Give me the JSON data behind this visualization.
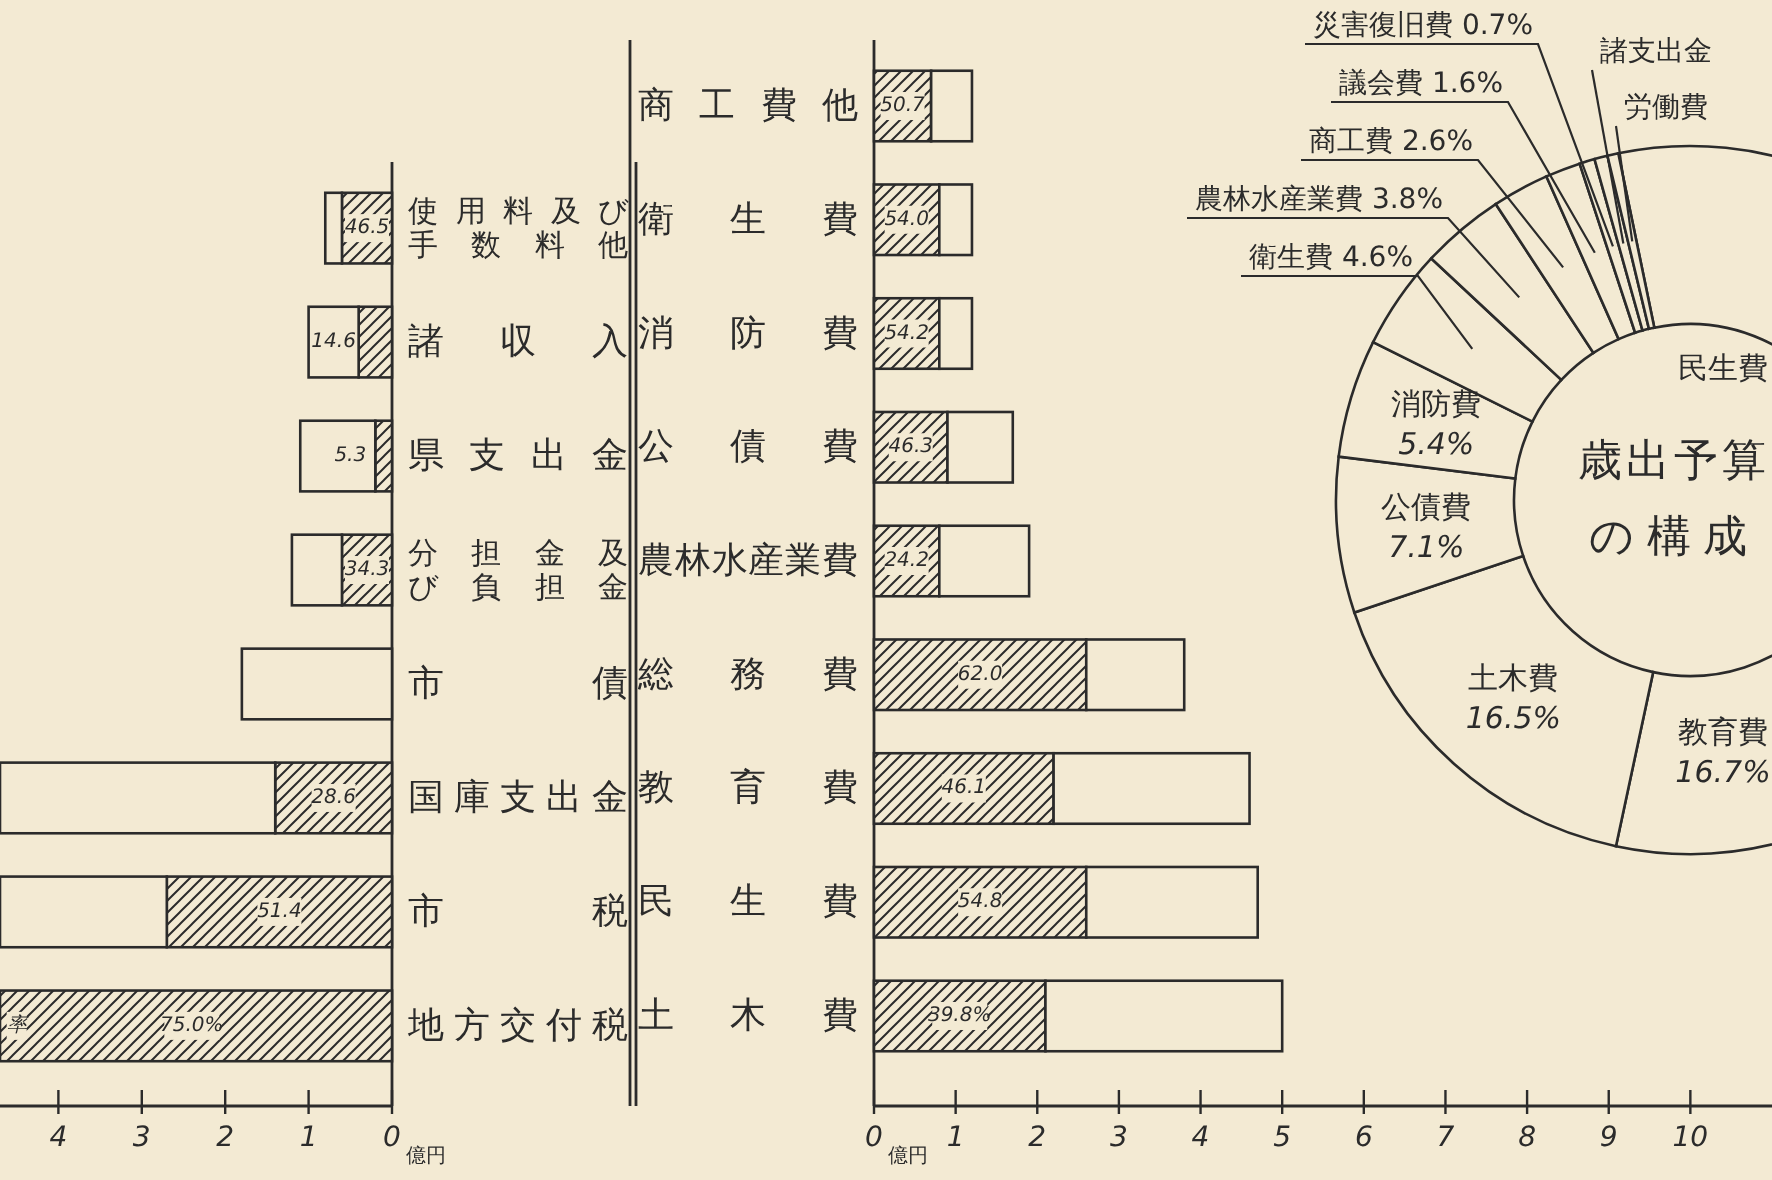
{
  "chart_data": [
    {
      "type": "bar",
      "orientation": "horizontal",
      "stacked": true,
      "categories": [
        "使用料及び手数料他",
        "諸収入",
        "県支出金",
        "分担金及び負担金",
        "市債",
        "国庫支出金",
        "市税",
        "地方交付税"
      ],
      "series": [
        {
          "color": "#2b2b2b",
          "values": [
            0.6,
            0.4,
            0.2,
            0.6,
            null,
            1.4,
            2.7,
            4.7
          ]
        },
        {
          "color": "#f3ead3",
          "values": [
            0.2,
            0.6,
            0.9,
            0.6,
            1.8,
            3.3,
            2.0,
            null
          ]
        }
      ],
      "xlim": [
        4.7,
        0
      ],
      "xticks": [
        4,
        3,
        2,
        1,
        0
      ],
      "xlabel": "億円",
      "annotations": [
        {
          "text": "46.5",
          "x": 0.3,
          "y": "使用料及び手数料他"
        },
        {
          "text": "14.6",
          "x": 0.7,
          "y": "諸収入"
        },
        {
          "text": "5.3",
          "x": 0.5,
          "y": "県支出金"
        },
        {
          "text": "34.3",
          "x": 0.3,
          "y": "分担金及び負担金"
        },
        {
          "text": "28.6",
          "x": 0.7,
          "y": "国庫支出金"
        },
        {
          "text": "51.4",
          "x": 1.35,
          "y": "市税"
        },
        {
          "text": "75.0%",
          "x": 2.4,
          "y": "地方交付税"
        },
        {
          "text": "率",
          "x": 4.5,
          "y": "地方交付税"
        }
      ]
    },
    {
      "type": "bar",
      "orientation": "horizontal",
      "stacked": true,
      "categories": [
        "商工費他",
        "衛生費",
        "消防費",
        "公債費",
        "農林水産業費",
        "総務費",
        "教育費",
        "民生費",
        "土木費"
      ],
      "series": [
        {
          "color": "#2b2b2b",
          "values": [
            0.7,
            0.8,
            0.8,
            0.9,
            0.8,
            2.6,
            2.2,
            2.6,
            2.1
          ]
        },
        {
          "color": "#f3ead3",
          "values": [
            0.5,
            0.4,
            0.4,
            0.8,
            1.1,
            1.2,
            2.4,
            2.1,
            2.9
          ]
        }
      ],
      "xlim": [
        0,
        11
      ],
      "xticks": [
        0,
        1,
        2,
        3,
        4,
        5,
        6,
        7,
        8,
        9,
        10
      ],
      "xlabel": "億円",
      "annotations": [
        {
          "text": "50.7",
          "x": 0.35,
          "y": "商工費他"
        },
        {
          "text": "54.0",
          "x": 0.4,
          "y": "衛生費"
        },
        {
          "text": "54.2",
          "x": 0.4,
          "y": "消防費"
        },
        {
          "text": "46.3",
          "x": 0.45,
          "y": "公債費"
        },
        {
          "text": "24.2",
          "x": 0.4,
          "y": "農林水産業費"
        },
        {
          "text": "62.0",
          "x": 1.3,
          "y": "総務費"
        },
        {
          "text": "46.1",
          "x": 1.1,
          "y": "教育費"
        },
        {
          "text": "54.8",
          "x": 1.3,
          "y": "民生費"
        },
        {
          "text": "39.8%",
          "x": 1.05,
          "y": "土木費"
        }
      ]
    },
    {
      "type": "donut",
      "title": "歳出予算の構成",
      "categories": [
        "民生費",
        "教育費",
        "土木費",
        "公債費",
        "消防費",
        "衛生費",
        "農林水産業費",
        "商工費",
        "議会費",
        "災害復旧費",
        "諸支出金",
        "労働費"
      ],
      "values": [
        39.9,
        16.7,
        16.5,
        7.1,
        5.4,
        4.6,
        3.8,
        2.6,
        1.6,
        0.7,
        0.6,
        0.5
      ],
      "value_labels": [
        null,
        "16.7%",
        "16.5%",
        "7.1%",
        "5.4%",
        "4.6%",
        "3.8%",
        "2.6%",
        "1.6%",
        "0.7%",
        null,
        null
      ],
      "colors": [
        "#f3ead3",
        "#f3ead3",
        "#f3ead3",
        "#f3ead3",
        "#f3ead3",
        "#f3ead3",
        "#f3ead3",
        "#f3ead3",
        "#f3ead3",
        "#f3ead3",
        "#f3ead3",
        "#f3ead3"
      ]
    }
  ]
}
